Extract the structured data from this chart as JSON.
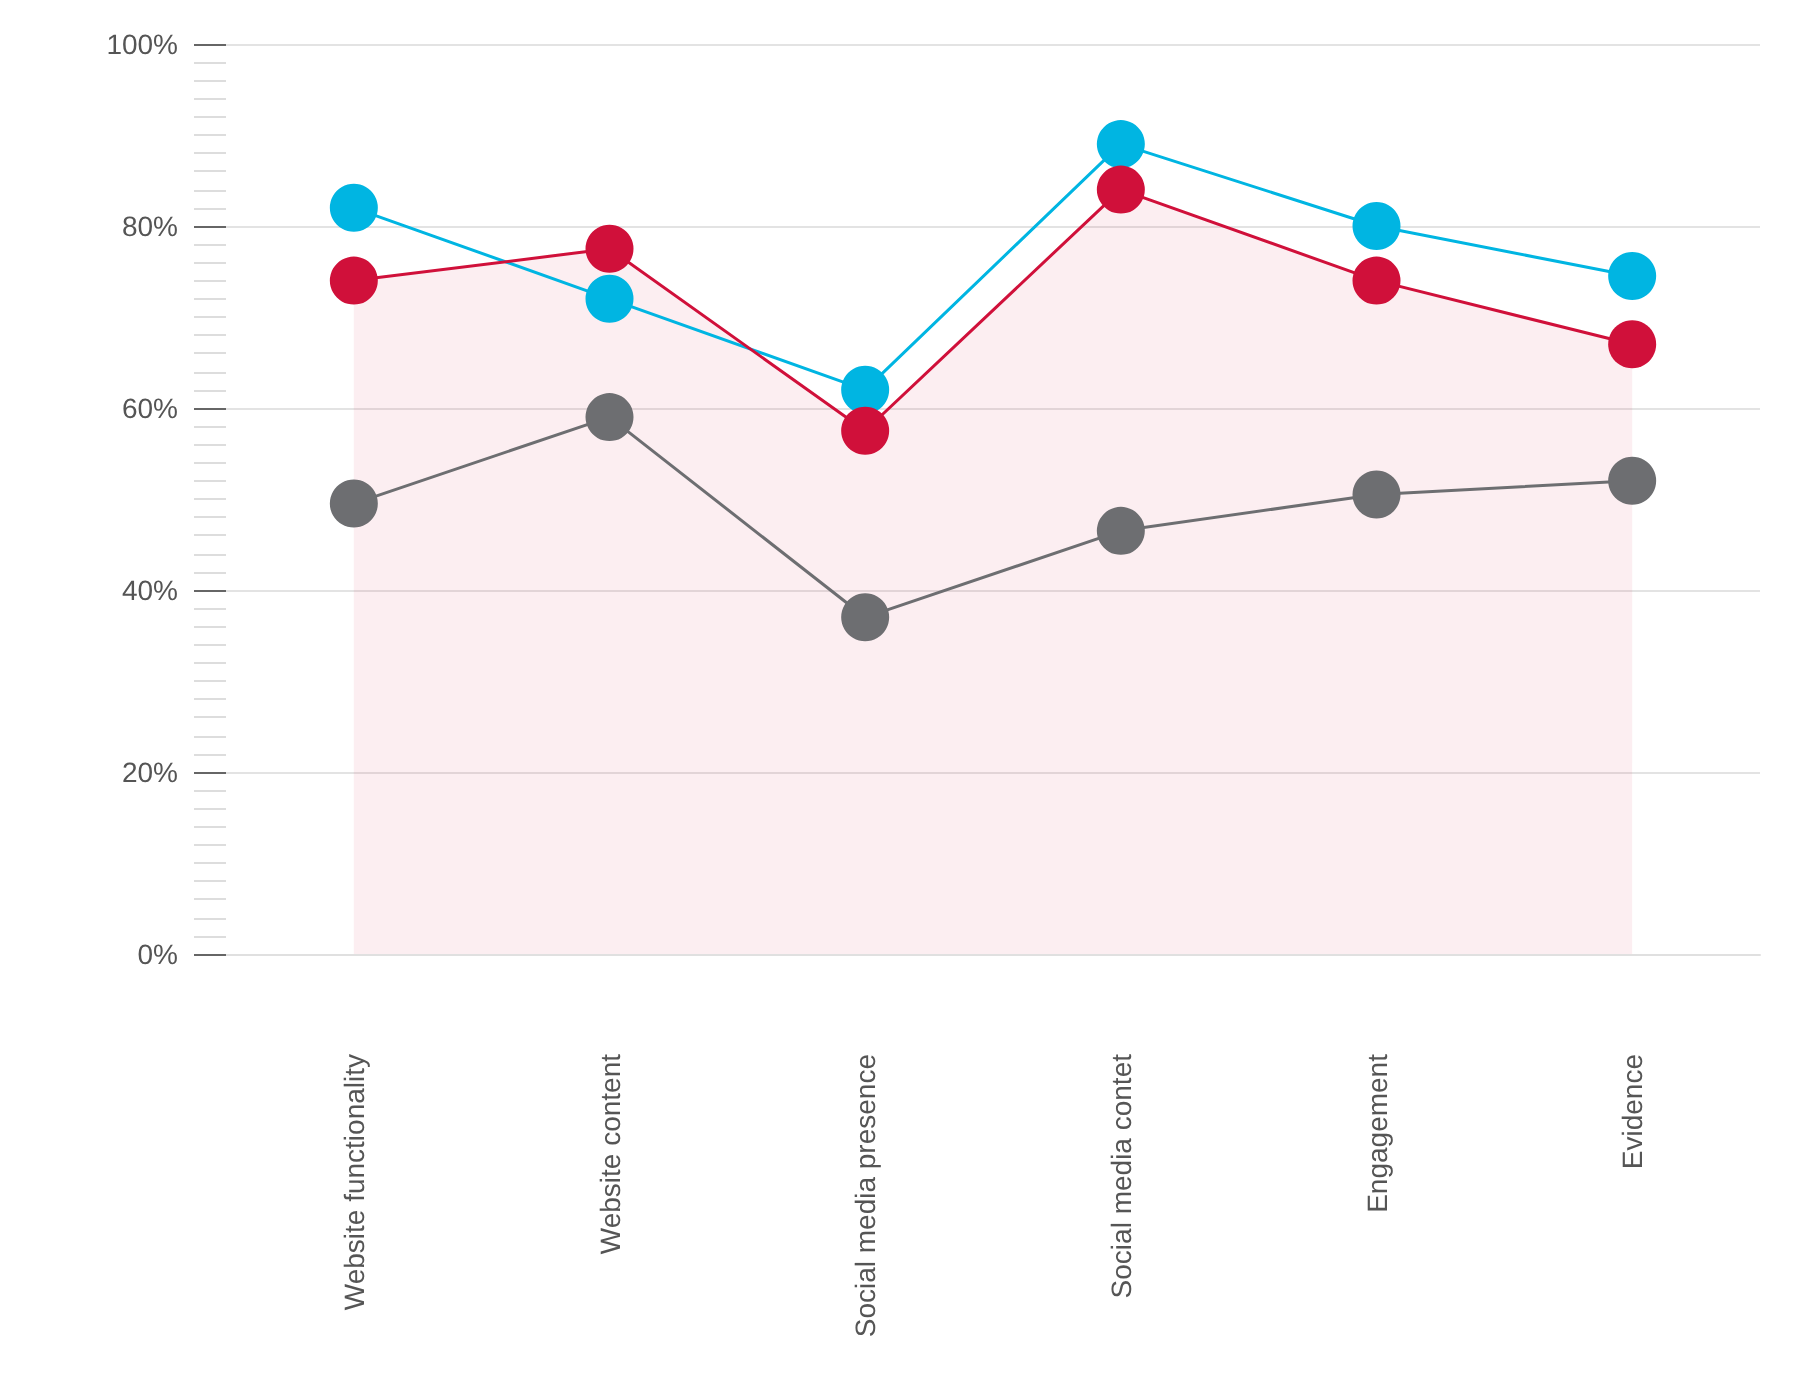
{
  "chart_data": {
    "type": "line",
    "categories": [
      "Website functionality",
      "Website content",
      "Social media presence",
      "Social media contet",
      "Engagement",
      "Evidence"
    ],
    "series": [
      {
        "color": "#d0103a",
        "type": "area",
        "values": [
          74,
          77.5,
          57.5,
          84,
          74,
          67
        ]
      },
      {
        "color": "#00b5e2",
        "values": [
          82,
          72,
          62,
          89,
          80,
          74.5
        ]
      },
      {
        "color": "#6d6e71",
        "values": [
          49.5,
          59,
          37,
          46.5,
          50.5,
          52
        ]
      }
    ],
    "ylim": [
      0,
      100
    ],
    "yticks": [
      {
        "value": 0,
        "label": "0%"
      },
      {
        "value": 20,
        "label": "20%"
      },
      {
        "value": 40,
        "label": "40%"
      },
      {
        "value": 60,
        "label": "60%"
      },
      {
        "value": 80,
        "label": "80%"
      },
      {
        "value": 100,
        "label": "100%"
      }
    ],
    "grid": "y",
    "marker": "circle",
    "line_style": "solid"
  }
}
